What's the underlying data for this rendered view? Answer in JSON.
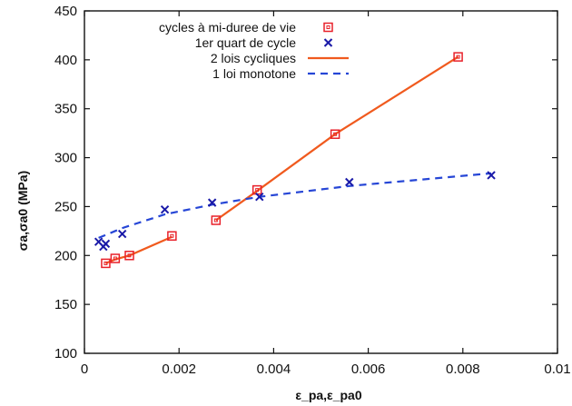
{
  "chart_data": {
    "type": "scatter",
    "title": "",
    "xlabel": "ε_pa,ε_pa0",
    "ylabel": "σa,σa0 (MPa)",
    "xlim": [
      0,
      0.01
    ],
    "ylim": [
      100,
      450
    ],
    "x_ticks": [
      0,
      0.002,
      0.004,
      0.006,
      0.008,
      0.01
    ],
    "x_tick_labels": [
      "0",
      "0.002",
      "0.004",
      "0.006",
      "0.008",
      "0.01"
    ],
    "y_ticks": [
      100,
      150,
      200,
      250,
      300,
      350,
      400,
      450
    ],
    "y_tick_labels": [
      "100",
      "150",
      "200",
      "250",
      "300",
      "350",
      "400",
      "450"
    ],
    "grid": false,
    "legend_position": "top-left",
    "series": [
      {
        "name": "cycles à mi-duree de vie",
        "kind": "markers",
        "marker": "square",
        "color": "#e8202a",
        "points": [
          [
            0.00045,
            192
          ],
          [
            0.00065,
            197
          ],
          [
            0.00095,
            200
          ],
          [
            0.00185,
            220
          ],
          [
            0.00278,
            236
          ],
          [
            0.00365,
            267
          ],
          [
            0.0053,
            324
          ],
          [
            0.0079,
            403
          ]
        ]
      },
      {
        "name": "1er quart de cycle",
        "kind": "markers",
        "marker": "x",
        "color": "#1a1aa8",
        "points": [
          [
            0.0003,
            214
          ],
          [
            0.0004,
            209
          ],
          [
            0.00045,
            212
          ],
          [
            0.0008,
            222
          ],
          [
            0.0017,
            247
          ],
          [
            0.0027,
            254
          ],
          [
            0.0037,
            260
          ],
          [
            0.0056,
            275
          ],
          [
            0.0086,
            282
          ]
        ]
      },
      {
        "name": "2 lois cycliques",
        "kind": "line",
        "style": "solid",
        "color": "#f05a1e",
        "segments": [
          [
            [
              0.00045,
              192
            ],
            [
              0.00065,
              196
            ],
            [
              0.00095,
              200
            ],
            [
              0.00185,
              219
            ]
          ],
          [
            [
              0.00278,
              236
            ],
            [
              0.00365,
              266
            ],
            [
              0.0053,
              324
            ],
            [
              0.0079,
              403
            ]
          ]
        ]
      },
      {
        "name": "1 loi monotone",
        "kind": "line",
        "style": "dashed",
        "color": "#2646d6",
        "points": [
          [
            0.0003,
            218
          ],
          [
            0.0008,
            228
          ],
          [
            0.0017,
            242
          ],
          [
            0.0027,
            252
          ],
          [
            0.0037,
            260
          ],
          [
            0.0056,
            271
          ],
          [
            0.0086,
            284
          ]
        ]
      }
    ]
  }
}
